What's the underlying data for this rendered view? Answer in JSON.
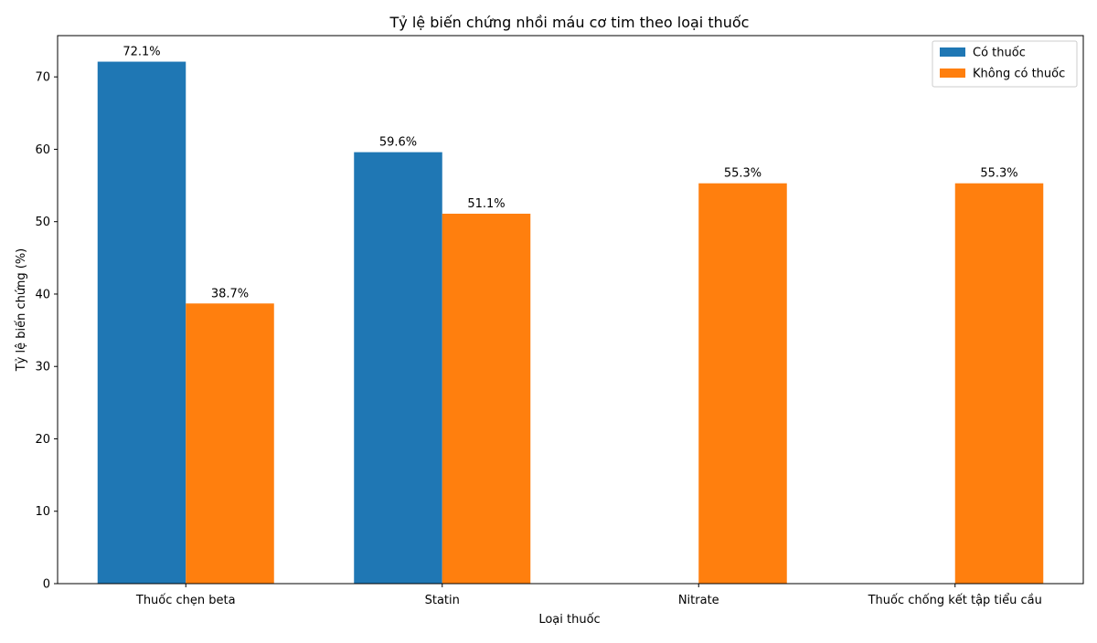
{
  "chart_data": {
    "type": "bar",
    "title": "Tỷ lệ biến chứng nhồi máu cơ tim theo loại thuốc",
    "xlabel": "Loại thuốc",
    "ylabel": "Tỷ lệ biến chứng (%)",
    "categories": [
      "Thuốc chẹn beta",
      "Statin",
      "Nitrate",
      "Thuốc chống kết tập tiểu cầu"
    ],
    "ylim": [
      0,
      75.7
    ],
    "yticks": [
      0,
      10,
      20,
      30,
      40,
      50,
      60,
      70
    ],
    "grid": false,
    "legend_position": "top-right",
    "series": [
      {
        "name": "Có thuốc",
        "color": "#1f77b4",
        "values": [
          72.1,
          59.6,
          null,
          null
        ],
        "labels": [
          "72.1%",
          "59.6%",
          "",
          ""
        ]
      },
      {
        "name": "Không có thuốc",
        "color": "#ff7f0e",
        "values": [
          38.7,
          51.1,
          55.3,
          55.3
        ],
        "labels": [
          "38.7%",
          "51.1%",
          "55.3%",
          "55.3%"
        ]
      }
    ]
  }
}
